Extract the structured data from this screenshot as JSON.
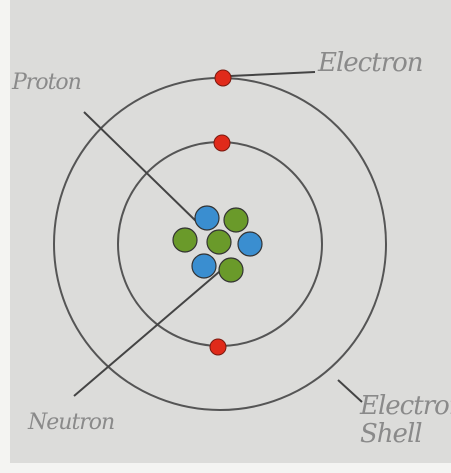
{
  "labels": {
    "electron": "Electron",
    "proton": "Proton",
    "neutron": "Neutron",
    "electron_shell": "Electron Shell"
  }
}
